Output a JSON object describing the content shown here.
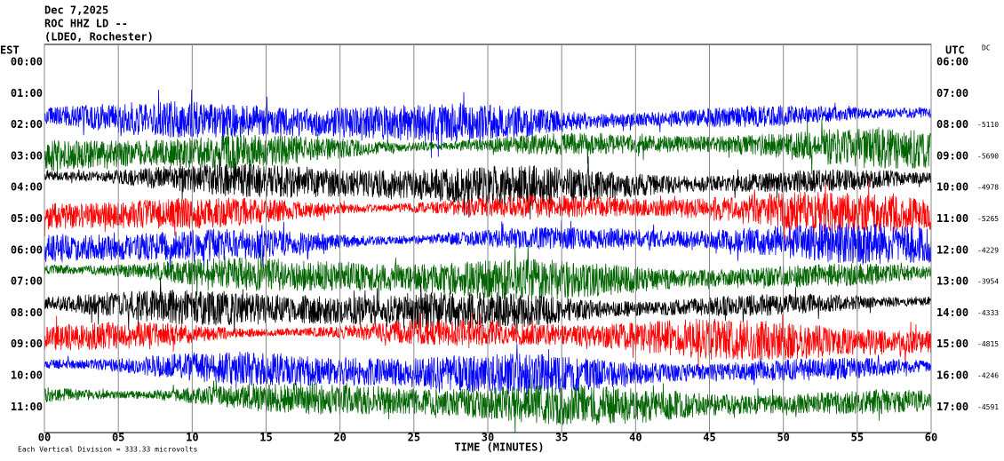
{
  "chart_data": {
    "type": "helicorder",
    "title": [
      "Dec 7,2025",
      "ROC HHZ LD --",
      "(LDEO, Rochester)"
    ],
    "y_label": "EST",
    "y2_label": "UTC",
    "dc_label": "DC",
    "categories": [
      "00:00",
      "01:00",
      "02:00",
      "03:00",
      "04:00",
      "05:00",
      "06:00",
      "07:00",
      "08:00",
      "09:00",
      "10:00",
      "11:00"
    ],
    "categories_utc": [
      "06:00",
      "07:00",
      "08:00",
      "09:00",
      "10:00",
      "11:00",
      "12:00",
      "13:00",
      "14:00",
      "15:00",
      "16:00",
      "17:00"
    ],
    "dc_values": [
      null,
      null,
      -5110,
      -5690,
      -4978,
      -5265,
      -4229,
      -3954,
      -4333,
      -4815,
      -4246,
      -4591
    ],
    "x_label": "TIME (MINUTES)",
    "note": "Each Vertical Division =  333.33 microvolts",
    "xlim": [
      0,
      60
    ],
    "xticks": [
      {
        "value": 0,
        "label": "00"
      },
      {
        "value": 5,
        "label": "05"
      },
      {
        "value": 10,
        "label": "10"
      },
      {
        "value": 15,
        "label": "15"
      },
      {
        "value": 20,
        "label": "20"
      },
      {
        "value": 25,
        "label": "25"
      },
      {
        "value": 30,
        "label": "30"
      },
      {
        "value": 35,
        "label": "35"
      },
      {
        "value": 40,
        "label": "40"
      },
      {
        "value": 45,
        "label": "45"
      },
      {
        "value": 50,
        "label": "50"
      },
      {
        "value": 55,
        "label": "55"
      },
      {
        "value": 60,
        "label": "60"
      }
    ],
    "colors": [
      "#0000ff",
      "#006400",
      "#000000",
      "#ff0000"
    ],
    "grid": true
  }
}
